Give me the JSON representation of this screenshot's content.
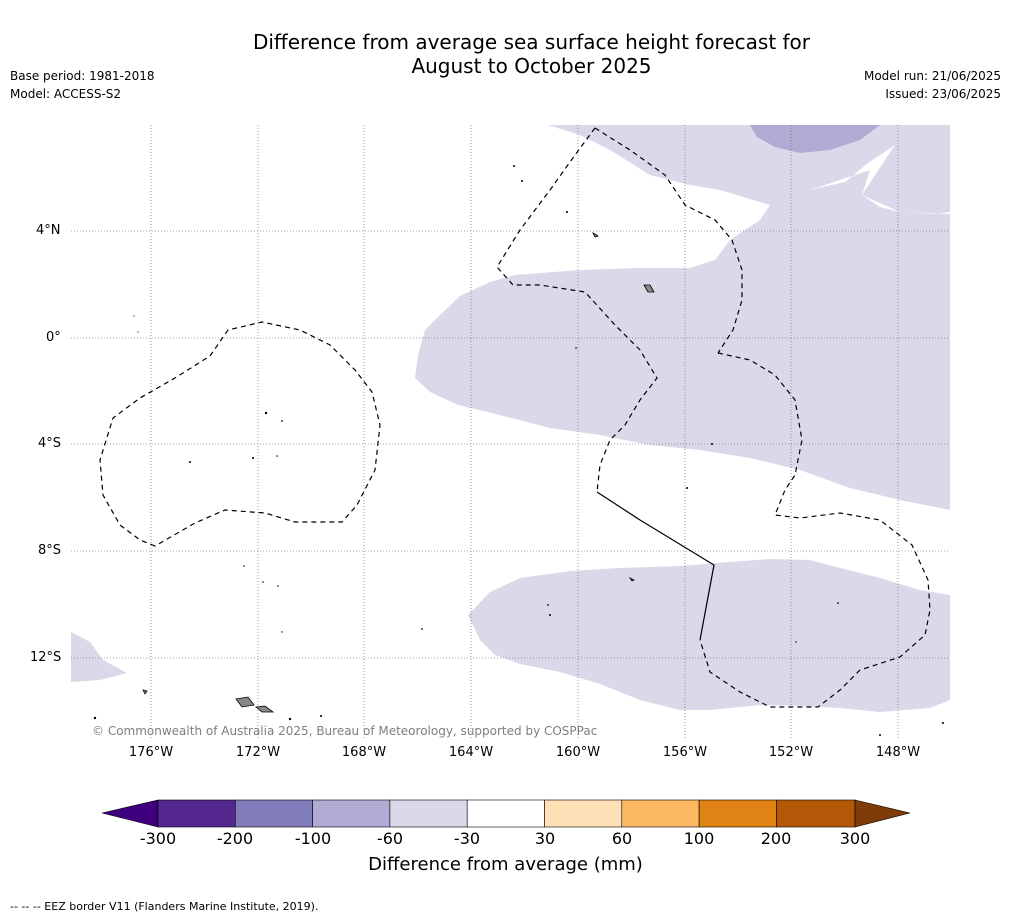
{
  "title": {
    "line1": "Difference from average sea surface height forecast for",
    "line2": "August to October 2025"
  },
  "meta": {
    "base_period": "Base period: 1981-2018",
    "model": "Model: ACCESS-S2",
    "model_run": "Model run: 21/06/2025",
    "issued": "Issued: 23/06/2025"
  },
  "map": {
    "lat_labels": [
      "4°N",
      "0°",
      "4°S",
      "8°S",
      "12°S"
    ],
    "lon_labels": [
      "176°W",
      "172°W",
      "168°W",
      "164°W",
      "160°W",
      "156°W",
      "152°W",
      "148°W"
    ],
    "copyright": "© Commonwealth of Australia 2025, Bureau of Meteorology, supported by COSPPac",
    "anomaly_fill_color": "#d9d9ea",
    "strong_anomaly_fill_color": "#b1abd3"
  },
  "colorbar": {
    "ticks": [
      "-300",
      "-200",
      "-100",
      "-60",
      "-30",
      "30",
      "60",
      "100",
      "200",
      "300"
    ],
    "colors": [
      "#3f007d",
      "#54278f",
      "#807dba",
      "#b1abd3",
      "#d9d9ea",
      "#ffffff",
      "#fee0b6",
      "#fdb863",
      "#e08214",
      "#b35806",
      "#7f3b08"
    ],
    "title": "Difference from average (mm)"
  },
  "footnote": "--  --  -- EEZ border V11 (Flanders Marine Institute, 2019)."
}
